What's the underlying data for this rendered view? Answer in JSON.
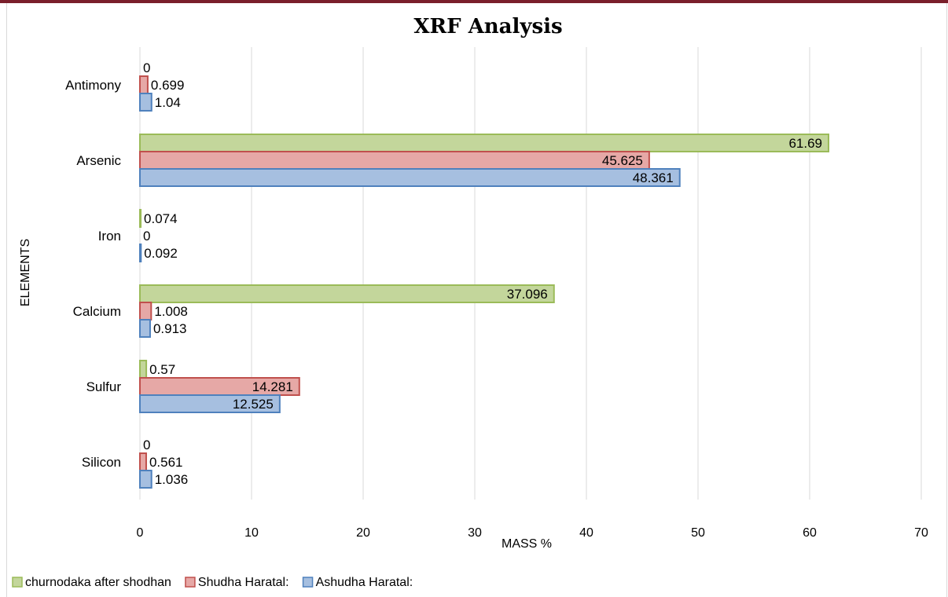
{
  "chart_data": {
    "type": "bar",
    "orientation": "horizontal",
    "title": "XRF Analysis",
    "xlabel": "MASS %",
    "ylabel": "ELEMENTS",
    "xlim": [
      0,
      70
    ],
    "xticks": [
      0,
      10,
      20,
      30,
      40,
      50,
      60,
      70
    ],
    "grid": true,
    "legend_position": "bottom-left",
    "categories": [
      "Antimony",
      "Arsenic",
      "Iron",
      "Calcium",
      "Sulfur",
      "Silicon"
    ],
    "series": [
      {
        "name": "churnodaka after shodhan",
        "values": [
          0,
          61.69,
          0.074,
          37.096,
          0.57,
          0
        ],
        "labels": [
          "0",
          "61.69",
          "0.074",
          "37.096",
          "0.57",
          "0"
        ],
        "color": "#c3d69b",
        "stroke": "#9bbb59"
      },
      {
        "name": "Shudha Haratal:",
        "values": [
          0.699,
          45.625,
          0,
          1.008,
          14.281,
          0.561
        ],
        "labels": [
          "0.699",
          "45.625",
          "0",
          "1.008",
          "14.281",
          "0.561"
        ],
        "color": "#e6a8a6",
        "stroke": "#c0504d"
      },
      {
        "name": "Ashudha Haratal:",
        "values": [
          1.04,
          48.361,
          0.092,
          0.913,
          12.525,
          1.036
        ],
        "labels": [
          "1.04",
          "48.361",
          "0.092",
          "0.913",
          "12.525",
          "1.036"
        ],
        "color": "#a6bfe0",
        "stroke": "#4f81bd"
      }
    ]
  }
}
